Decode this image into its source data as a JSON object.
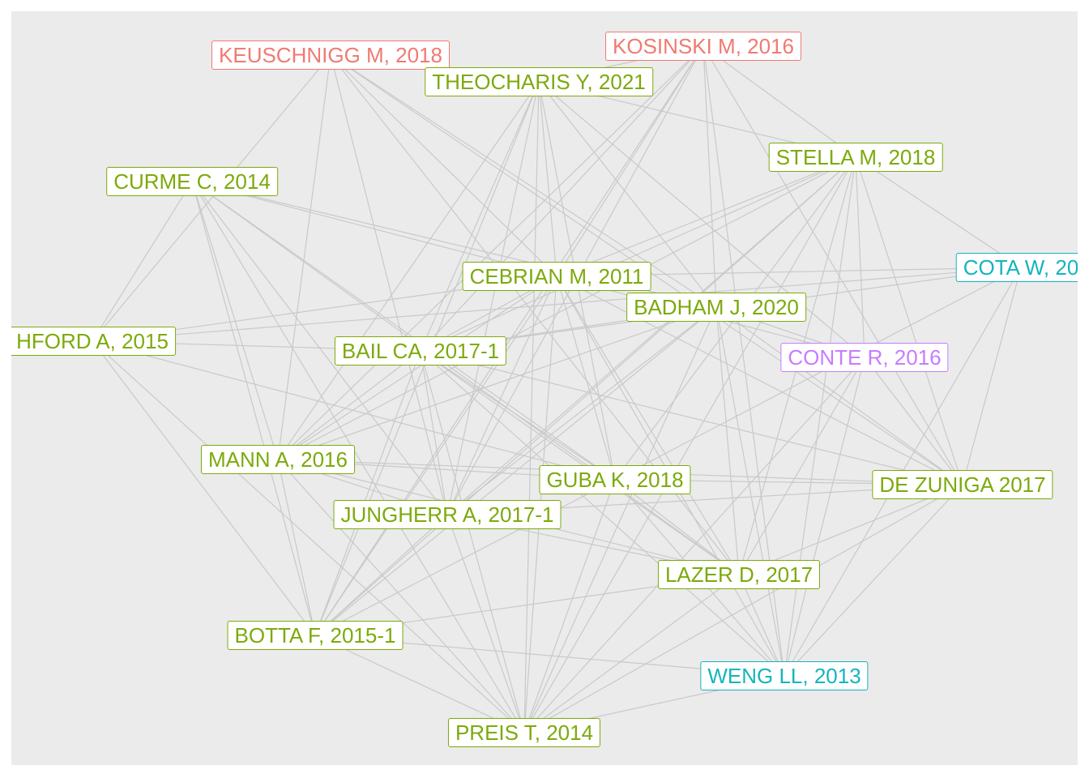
{
  "colors": {
    "panel_bg": "#ebebeb",
    "edge": "#c9c9c9",
    "cluster_green": "#7caa0b",
    "cluster_red": "#f07a72",
    "cluster_cyan": "#13b5bd",
    "cluster_purple": "#c77cff"
  },
  "nodes": [
    {
      "id": "keuschnigg",
      "label": "KEUSCHNIGG M, 2018",
      "cluster": "red"
    },
    {
      "id": "kosinski",
      "label": "KOSINSKI M, 2016",
      "cluster": "red"
    },
    {
      "id": "theocharis",
      "label": "THEOCHARIS Y, 2021",
      "cluster": "green"
    },
    {
      "id": "stella",
      "label": "STELLA M, 2018",
      "cluster": "green"
    },
    {
      "id": "curme",
      "label": "CURME C, 2014",
      "cluster": "green"
    },
    {
      "id": "cota",
      "label": "COTA W, 20",
      "cluster": "cyan"
    },
    {
      "id": "cebrian",
      "label": "CEBRIAN M, 2011",
      "cluster": "green"
    },
    {
      "id": "badham",
      "label": "BADHAM J, 2020",
      "cluster": "green"
    },
    {
      "id": "ashford",
      "label": "HFORD A, 2015",
      "cluster": "green"
    },
    {
      "id": "bail",
      "label": "BAIL CA, 2017-1",
      "cluster": "green"
    },
    {
      "id": "conte",
      "label": "CONTE R, 2016",
      "cluster": "purple"
    },
    {
      "id": "mann",
      "label": "MANN A, 2016",
      "cluster": "green"
    },
    {
      "id": "guba",
      "label": "GUBA K, 2018",
      "cluster": "green"
    },
    {
      "id": "dezuniga",
      "label": "DE ZUNIGA 2017",
      "cluster": "green"
    },
    {
      "id": "jungherr",
      "label": "JUNGHERR A, 2017-1",
      "cluster": "green"
    },
    {
      "id": "lazer",
      "label": "LAZER D, 2017",
      "cluster": "green"
    },
    {
      "id": "botta",
      "label": "BOTTA F, 2015-1",
      "cluster": "green"
    },
    {
      "id": "weng",
      "label": "WENG LL, 2013",
      "cluster": "cyan"
    },
    {
      "id": "preis",
      "label": "PREIS T, 2014",
      "cluster": "green"
    }
  ],
  "edges": [
    [
      "keuschnigg",
      "cebrian"
    ],
    [
      "keuschnigg",
      "badham"
    ],
    [
      "keuschnigg",
      "ashford"
    ],
    [
      "keuschnigg",
      "mann"
    ],
    [
      "keuschnigg",
      "jungherr"
    ],
    [
      "keuschnigg",
      "lazer"
    ],
    [
      "keuschnigg",
      "dezuniga"
    ],
    [
      "kosinski",
      "theocharis"
    ],
    [
      "kosinski",
      "stella"
    ],
    [
      "kosinski",
      "cebrian"
    ],
    [
      "kosinski",
      "bail"
    ],
    [
      "kosinski",
      "badham"
    ],
    [
      "kosinski",
      "jungherr"
    ],
    [
      "kosinski",
      "mann"
    ],
    [
      "kosinski",
      "dezuniga"
    ],
    [
      "kosinski",
      "weng"
    ],
    [
      "kosinski",
      "botta"
    ],
    [
      "theocharis",
      "cebrian"
    ],
    [
      "theocharis",
      "bail"
    ],
    [
      "theocharis",
      "jungherr"
    ],
    [
      "theocharis",
      "guba"
    ],
    [
      "theocharis",
      "mann"
    ],
    [
      "theocharis",
      "stella"
    ],
    [
      "theocharis",
      "badham"
    ],
    [
      "theocharis",
      "botta"
    ],
    [
      "theocharis",
      "preis"
    ],
    [
      "theocharis",
      "conte"
    ],
    [
      "stella",
      "cebrian"
    ],
    [
      "stella",
      "bail"
    ],
    [
      "stella",
      "mann"
    ],
    [
      "stella",
      "jungherr"
    ],
    [
      "stella",
      "guba"
    ],
    [
      "stella",
      "lazer"
    ],
    [
      "stella",
      "dezuniga"
    ],
    [
      "stella",
      "weng"
    ],
    [
      "stella",
      "cota"
    ],
    [
      "stella",
      "botta"
    ],
    [
      "stella",
      "conte"
    ],
    [
      "stella",
      "preis"
    ],
    [
      "curme",
      "cebrian"
    ],
    [
      "curme",
      "badham"
    ],
    [
      "curme",
      "ashford"
    ],
    [
      "curme",
      "mann"
    ],
    [
      "curme",
      "botta"
    ],
    [
      "curme",
      "preis"
    ],
    [
      "curme",
      "jungherr"
    ],
    [
      "curme",
      "guba"
    ],
    [
      "curme",
      "lazer"
    ],
    [
      "cota",
      "cebrian"
    ],
    [
      "cota",
      "bail"
    ],
    [
      "cota",
      "ashford"
    ],
    [
      "cota",
      "dezuniga"
    ],
    [
      "cota",
      "weng"
    ],
    [
      "cota",
      "guba"
    ],
    [
      "cebrian",
      "ashford"
    ],
    [
      "cebrian",
      "mann"
    ],
    [
      "cebrian",
      "bail"
    ],
    [
      "cebrian",
      "guba"
    ],
    [
      "cebrian",
      "dezuniga"
    ],
    [
      "cebrian",
      "jungherr"
    ],
    [
      "cebrian",
      "lazer"
    ],
    [
      "cebrian",
      "botta"
    ],
    [
      "cebrian",
      "preis"
    ],
    [
      "cebrian",
      "weng"
    ],
    [
      "cebrian",
      "conte"
    ],
    [
      "badham",
      "mann"
    ],
    [
      "badham",
      "jungherr"
    ],
    [
      "badham",
      "botta"
    ],
    [
      "badham",
      "preis"
    ],
    [
      "badham",
      "lazer"
    ],
    [
      "badham",
      "weng"
    ],
    [
      "badham",
      "dezuniga"
    ],
    [
      "badham",
      "conte"
    ],
    [
      "badham",
      "bail"
    ],
    [
      "ashford",
      "bail"
    ],
    [
      "ashford",
      "botta"
    ],
    [
      "ashford",
      "preis"
    ],
    [
      "ashford",
      "guba"
    ],
    [
      "bail",
      "mann"
    ],
    [
      "bail",
      "jungherr"
    ],
    [
      "bail",
      "guba"
    ],
    [
      "bail",
      "lazer"
    ],
    [
      "bail",
      "dezuniga"
    ],
    [
      "bail",
      "preis"
    ],
    [
      "bail",
      "botta"
    ],
    [
      "bail",
      "weng"
    ],
    [
      "conte",
      "dezuniga"
    ],
    [
      "conte",
      "lazer"
    ],
    [
      "conte",
      "weng"
    ],
    [
      "conte",
      "preis"
    ],
    [
      "mann",
      "guba"
    ],
    [
      "mann",
      "dezuniga"
    ],
    [
      "mann",
      "botta"
    ],
    [
      "mann",
      "preis"
    ],
    [
      "mann",
      "jungherr"
    ],
    [
      "mann",
      "lazer"
    ],
    [
      "guba",
      "dezuniga"
    ],
    [
      "guba",
      "lazer"
    ],
    [
      "guba",
      "preis"
    ],
    [
      "guba",
      "botta"
    ],
    [
      "guba",
      "weng"
    ],
    [
      "dezuniga",
      "jungherr"
    ],
    [
      "dezuniga",
      "weng"
    ],
    [
      "dezuniga",
      "lazer"
    ],
    [
      "dezuniga",
      "preis"
    ],
    [
      "jungherr",
      "lazer"
    ],
    [
      "jungherr",
      "botta"
    ],
    [
      "jungherr",
      "preis"
    ],
    [
      "lazer",
      "weng"
    ],
    [
      "lazer",
      "preis"
    ],
    [
      "lazer",
      "botta"
    ],
    [
      "botta",
      "weng"
    ],
    [
      "botta",
      "preis"
    ],
    [
      "weng",
      "preis"
    ]
  ]
}
